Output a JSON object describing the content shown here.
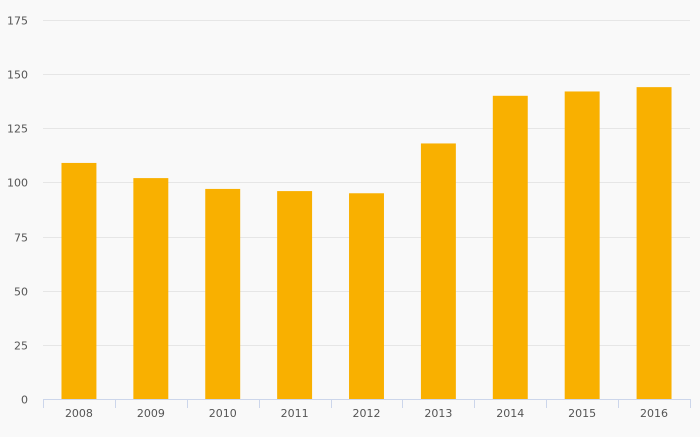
{
  "chart_data": {
    "type": "bar",
    "title": "",
    "xlabel": "",
    "ylabel": "",
    "categories": [
      "2008",
      "2009",
      "2010",
      "2011",
      "2012",
      "2013",
      "2014",
      "2015",
      "2016"
    ],
    "series": [
      {
        "values": [
          109,
          102,
          97,
          96,
          95,
          118,
          140,
          142,
          144
        ],
        "color": "#f9b000"
      }
    ],
    "ylim": [
      0,
      175
    ],
    "yticks": [
      0,
      25,
      50,
      75,
      100,
      125,
      150,
      175
    ],
    "grid": true,
    "legend": "none"
  },
  "colors": {
    "background": "#f9f9f9",
    "gridline": "#e6e6e6",
    "axis": "#ccd6eb",
    "tick_text": "#555555",
    "bar": "#f9b000"
  }
}
